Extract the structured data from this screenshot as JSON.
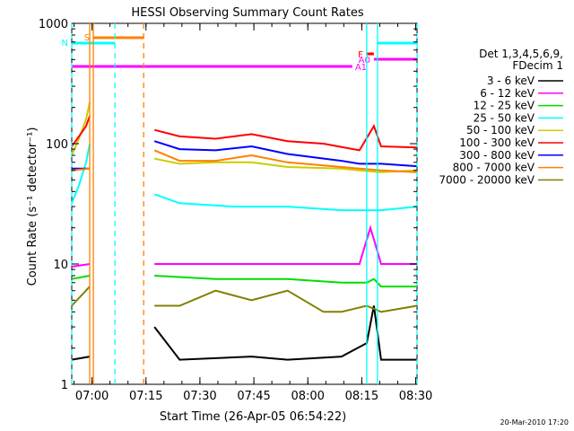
{
  "chart_data": {
    "type": "line",
    "title": "HESSI Observing Summary Count Rates",
    "xlabel": "Start Time (26-Apr-05 06:54:22)",
    "ylabel": "Count Rate (s⁻¹ detector⁻¹)",
    "yscale": "log",
    "ylim": [
      1,
      1000
    ],
    "xlim_minutes": [
      0,
      96
    ],
    "x_tick_labels": [
      "07:00",
      "07:15",
      "07:30",
      "07:45",
      "08:00",
      "08:15",
      "08:30"
    ],
    "y_tick_labels": [
      "1",
      "10",
      "100",
      "1000"
    ],
    "legend_header": [
      "Det 1,3,4,5,6,9,",
      "FDecim 1"
    ],
    "date_stamp": "20-Mar-2010 17:20",
    "series": [
      {
        "name": "3 - 6 keV",
        "color": "#000000",
        "x": [
          0,
          5,
          20,
          23,
          30,
          50,
          60,
          75,
          82,
          84,
          86,
          96
        ],
        "y": [
          1.6,
          1.7,
          null,
          3.0,
          1.6,
          1.7,
          1.6,
          1.7,
          2.2,
          4.5,
          1.6,
          1.6
        ]
      },
      {
        "name": "6 - 12 keV",
        "color": "#ff00ff",
        "x": [
          0,
          5,
          20,
          23,
          40,
          60,
          75,
          80,
          83,
          84,
          86,
          96
        ],
        "y": [
          9.5,
          10,
          null,
          10,
          10,
          10,
          10,
          10,
          20,
          16,
          10,
          10
        ]
      },
      {
        "name": "12 - 25 keV",
        "color": "#00dd00",
        "x": [
          0,
          5,
          20,
          23,
          40,
          60,
          75,
          82,
          84,
          86,
          96
        ],
        "y": [
          7.5,
          8,
          null,
          8,
          7.5,
          7.5,
          7,
          7,
          7.5,
          6.5,
          6.5
        ]
      },
      {
        "name": "25 - 50 keV",
        "color": "#00ffff",
        "x": [
          0,
          2,
          4,
          5,
          20,
          23,
          30,
          45,
          60,
          75,
          80,
          86,
          96
        ],
        "y": [
          32,
          45,
          70,
          100,
          null,
          38,
          32,
          30,
          30,
          28,
          28,
          28,
          30
        ]
      },
      {
        "name": "50 - 100 keV",
        "color": "#cccc00",
        "x": [
          0,
          2,
          4,
          5,
          20,
          23,
          30,
          40,
          50,
          60,
          75,
          80,
          86,
          96
        ],
        "y": [
          80,
          110,
          160,
          220,
          null,
          75,
          68,
          70,
          70,
          64,
          62,
          60,
          58,
          60
        ]
      },
      {
        "name": "100 - 300 keV",
        "color": "#ff0000",
        "x": [
          0,
          2,
          4,
          5,
          20,
          23,
          30,
          40,
          50,
          60,
          70,
          80,
          84,
          86,
          96
        ],
        "y": [
          95,
          115,
          140,
          170,
          null,
          130,
          115,
          110,
          120,
          105,
          100,
          88,
          140,
          95,
          93
        ]
      },
      {
        "name": "300 - 800 keV",
        "color": "#0000ff",
        "x": [
          0,
          5,
          20,
          23,
          30,
          40,
          50,
          60,
          75,
          80,
          86,
          96
        ],
        "y": [
          62,
          62,
          null,
          105,
          90,
          88,
          95,
          82,
          72,
          68,
          68,
          65
        ]
      },
      {
        "name": "800 - 7000 keV",
        "color": "#ff8000",
        "x": [
          0,
          5,
          20,
          23,
          30,
          40,
          50,
          60,
          75,
          80,
          86,
          96
        ],
        "y": [
          60,
          62,
          null,
          88,
          72,
          72,
          80,
          70,
          64,
          62,
          60,
          58
        ]
      },
      {
        "name": "7000 - 20000 keV",
        "color": "#808000",
        "x": [
          0,
          5,
          20,
          23,
          30,
          40,
          50,
          60,
          70,
          75,
          82,
          86,
          96
        ],
        "y": [
          4.5,
          6.5,
          null,
          4.5,
          4.5,
          6,
          5,
          6,
          4,
          4,
          4.5,
          4,
          4.5
        ]
      }
    ],
    "flag_bars": [
      {
        "label": "S",
        "color": "#ff8000",
        "x_start": 6,
        "x_end": 20
      },
      {
        "label": "N",
        "color": "#00ffff",
        "x_start": 0,
        "x_end": 12
      },
      {
        "label": "A1",
        "color": "#ff00ff",
        "x_start": 0,
        "x_end": 78
      },
      {
        "label": "F",
        "color": "#ff0000",
        "x_start": 82,
        "x_end": 84
      },
      {
        "label": "A0",
        "color": "#ff00ff",
        "x_start": 84,
        "x_end": 96
      },
      {
        "label": "",
        "color": "#00ffff",
        "x_start": 85,
        "x_end": 96
      }
    ],
    "vertical_lines": [
      {
        "x": 0,
        "color": "#00ffff",
        "style": "dashed"
      },
      {
        "x": 5,
        "color": "#ff8000",
        "style": "solid"
      },
      {
        "x": 6,
        "color": "#ff8000",
        "style": "solid"
      },
      {
        "x": 12,
        "color": "#00ffff",
        "style": "dashed"
      },
      {
        "x": 20,
        "color": "#ff8000",
        "style": "dashed"
      },
      {
        "x": 82,
        "color": "#00ffff",
        "style": "solid"
      },
      {
        "x": 85,
        "color": "#00ffff",
        "style": "solid"
      },
      {
        "x": 96,
        "color": "#00ffff",
        "style": "dashed"
      }
    ]
  }
}
